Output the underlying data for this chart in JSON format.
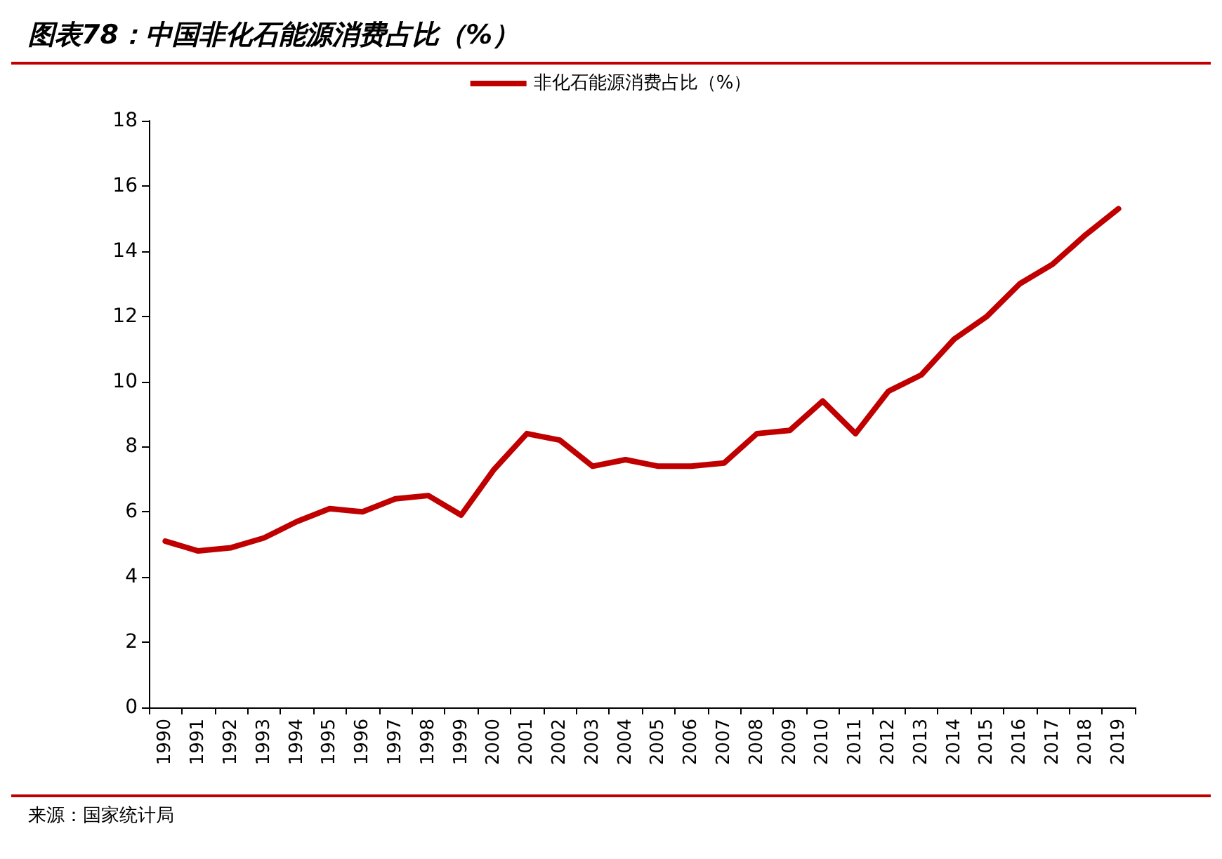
{
  "chart_data": {
    "type": "line",
    "title": "图表78：中国非化石能源消费占比（%）",
    "categories": [
      "1990",
      "1991",
      "1992",
      "1993",
      "1994",
      "1995",
      "1996",
      "1997",
      "1998",
      "1999",
      "2000",
      "2001",
      "2002",
      "2003",
      "2004",
      "2005",
      "2006",
      "2007",
      "2008",
      "2009",
      "2010",
      "2011",
      "2012",
      "2013",
      "2014",
      "2015",
      "2016",
      "2017",
      "2018",
      "2019"
    ],
    "series": [
      {
        "name": "非化石能源消费占比（%）",
        "color": "#c00000",
        "values": [
          5.1,
          4.8,
          4.9,
          5.2,
          5.7,
          6.1,
          6.0,
          6.4,
          6.5,
          5.9,
          7.3,
          8.4,
          8.2,
          7.4,
          7.6,
          7.4,
          7.4,
          7.5,
          8.4,
          8.5,
          9.4,
          8.4,
          9.7,
          10.2,
          11.3,
          12.0,
          13.0,
          13.6,
          14.5,
          15.3
        ]
      }
    ],
    "ylim": [
      0,
      18
    ],
    "yticks": [
      0,
      2,
      4,
      6,
      8,
      10,
      12,
      14,
      16,
      18
    ],
    "grid": false,
    "legend": "top",
    "marker": "none",
    "line_style": "solid",
    "annotations": [
      "来源：国家统计局"
    ]
  }
}
